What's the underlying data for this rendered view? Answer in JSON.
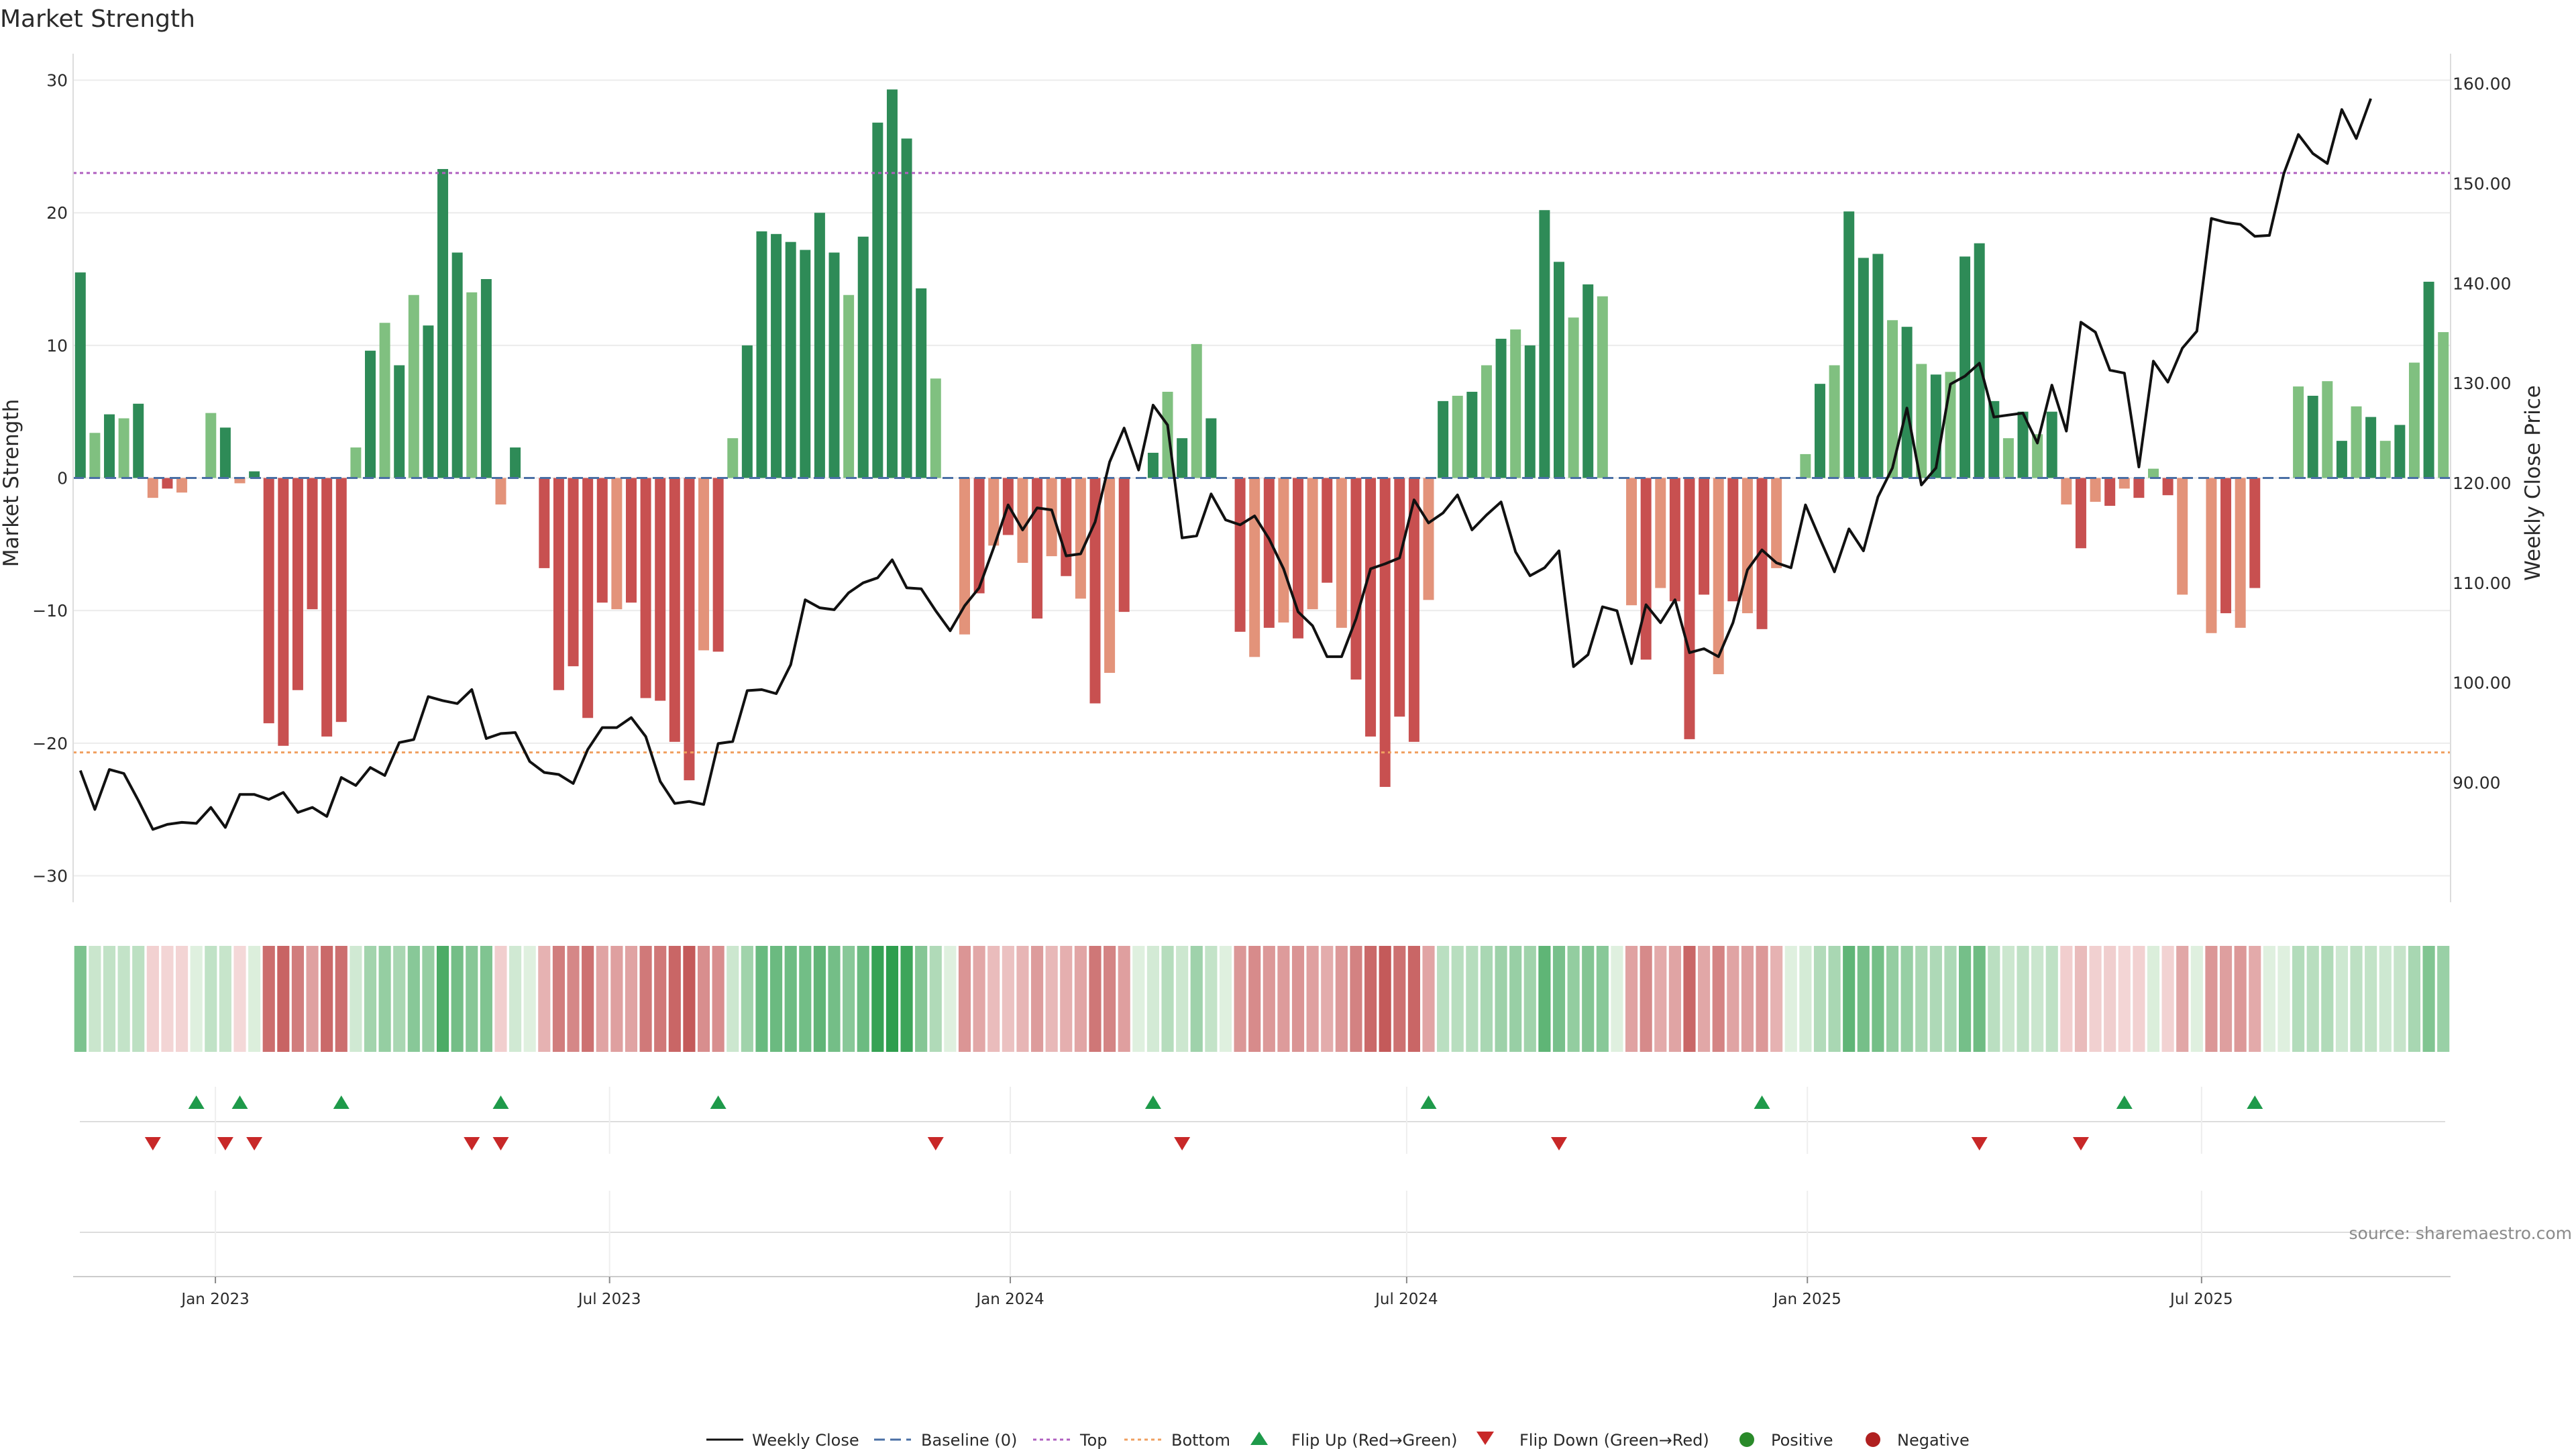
{
  "chart_data": {
    "type": "bar",
    "title": "Market Strength",
    "ylabel_left": "Market Strength",
    "ylabel_right": "Weekly Close Price",
    "ylim_left": [
      -32,
      32
    ],
    "yticks_left": [
      "30",
      "20",
      "10",
      "0",
      "−10",
      "−20",
      "−30"
    ],
    "yticks_left_values": [
      30,
      20,
      10,
      0,
      -10,
      -20,
      -30
    ],
    "ylim_right": [
      78,
      163
    ],
    "yticks_right": [
      "160.00",
      "150.00",
      "140.00",
      "130.00",
      "120.00",
      "110.00",
      "100.00",
      "90.00"
    ],
    "yticks_right_values": [
      160,
      150,
      140,
      130,
      120,
      110,
      100,
      90
    ],
    "x_start": "2022-10-31",
    "x_end": "2025-10-20",
    "x_ticks": [
      {
        "date": "2023-01-01",
        "label": "Jan 2023"
      },
      {
        "date": "2023-07-01",
        "label": "Jul 2023"
      },
      {
        "date": "2024-01-01",
        "label": "Jan 2024"
      },
      {
        "date": "2024-07-01",
        "label": "Jul 2024"
      },
      {
        "date": "2025-01-01",
        "label": "Jan 2025"
      },
      {
        "date": "2025-07-01",
        "label": "Jul 2025"
      }
    ],
    "grid": true,
    "legend_placement": "bottom",
    "top_line": 23,
    "bottom_line": -20.7,
    "strength": [
      15.5,
      3.4,
      4.8,
      4.5,
      5.6,
      -1.5,
      -0.8,
      -1.1,
      0,
      4.9,
      3.8,
      -0.4,
      0.5,
      -18.5,
      -20.2,
      -16,
      -9.9,
      -19.5,
      -18.4,
      2.3,
      9.6,
      11.7,
      8.5,
      13.8,
      11.5,
      23.3,
      17,
      14,
      15,
      -2,
      2.3,
      0,
      -6.8,
      -16,
      -14.2,
      -18.1,
      -9.4,
      -9.9,
      -9.4,
      -16.6,
      -16.8,
      -19.9,
      -22.8,
      -13,
      -13.1,
      3,
      10,
      18.6,
      18.4,
      17.8,
      17.2,
      20,
      17,
      13.8,
      18.2,
      26.8,
      29.3,
      25.6,
      14.3,
      7.5,
      0,
      -11.8,
      -8.7,
      -5.1,
      -4.3,
      -6.4,
      -10.6,
      -5.9,
      -7.4,
      -9.1,
      -17,
      -14.7,
      -10.1,
      0,
      1.9,
      6.5,
      3,
      10.1,
      4.5,
      0,
      -11.6,
      -13.5,
      -11.3,
      -10.9,
      -12.1,
      -9.9,
      -7.9,
      -11.3,
      -15.2,
      -19.5,
      -23.3,
      -18,
      -19.9,
      -9.2,
      5.8,
      6.2,
      6.5,
      8.5,
      10.5,
      11.2,
      10,
      20.2,
      16.3,
      12.1,
      14.6,
      13.7,
      0,
      -9.6,
      -13.7,
      -8.3,
      -9.3,
      -19.7,
      -8.8,
      -14.8,
      -9.3,
      -10.2,
      -11.4,
      -6.8,
      0,
      1.8,
      7.1,
      8.5,
      20.1,
      16.6,
      16.9,
      11.9,
      11.4,
      8.6,
      7.8,
      8,
      16.7,
      17.7,
      5.8,
      3,
      5,
      3.3,
      5,
      -2,
      -5.3,
      -1.8,
      -2.1,
      -0.8,
      -1.5,
      0.7,
      -1.3,
      -8.8,
      0,
      -11.7,
      -10.2,
      -11.3,
      -8.3,
      0,
      0,
      6.9,
      6.2,
      7.3,
      2.8,
      5.4,
      4.6,
      2.8,
      4,
      8.7,
      14.8,
      11
    ],
    "weekly_close": [
      91.2,
      87.3,
      91.3,
      90.9,
      88.2,
      85.3,
      85.8,
      86,
      85.9,
      87.5,
      85.5,
      88.8,
      88.8,
      88.3,
      89,
      87,
      87.5,
      86.6,
      90.5,
      89.7,
      91.5,
      90.7,
      94,
      94.3,
      98.6,
      98.2,
      97.9,
      99.3,
      94.4,
      94.9,
      95,
      92.1,
      91,
      90.8,
      89.9,
      93.3,
      95.5,
      95.5,
      96.5,
      94.6,
      90.1,
      87.9,
      88.1,
      87.8,
      93.9,
      94.1,
      99.2,
      99.3,
      98.9,
      101.8,
      108.3,
      107.5,
      107.3,
      109,
      110,
      110.5,
      112.3,
      109.5,
      109.4,
      107.2,
      105.2,
      107.7,
      109.5,
      113.5,
      117.8,
      115.3,
      117.5,
      117.3,
      112.7,
      112.9,
      116.1,
      122.1,
      125.5,
      121.3,
      127.8,
      125.8,
      114.5,
      114.7,
      118.9,
      116.3,
      115.8,
      116.7,
      114.4,
      111.4,
      107.1,
      105.7,
      102.6,
      102.6,
      106.4,
      111.4,
      111.9,
      112.5,
      118.3,
      116,
      117,
      118.8,
      115.3,
      116.8,
      118.1,
      113.1,
      110.7,
      111.5,
      113.2,
      101.6,
      102.8,
      107.6,
      107.2,
      101.9,
      107.8,
      106,
      108.3,
      103,
      103.4,
      102.6,
      106,
      111.3,
      113.3,
      112,
      111.5,
      117.8,
      114.4,
      111.1,
      115.4,
      113.2,
      118.6,
      121.5,
      127.5,
      119.8,
      121.5,
      129.9,
      130.7,
      132,
      126.6,
      126.8,
      127,
      124,
      129.8,
      125.2,
      136.1,
      135.1,
      131.3,
      131,
      121.6,
      132.2,
      130.1,
      133.5,
      135.2,
      146.5,
      146.1,
      145.9,
      144.7,
      144.8,
      151,
      154.9,
      153,
      152,
      157.4,
      154.5,
      158.5
    ],
    "flip_up_weeks": [
      8,
      11,
      18,
      29,
      44,
      74,
      93,
      116,
      141,
      150
    ],
    "flip_down_weeks": [
      5,
      10,
      12,
      27,
      29,
      59,
      76,
      102,
      131,
      138
    ]
  },
  "legend": {
    "weekly_close": "Weekly Close",
    "baseline": "Baseline (0)",
    "top": "Top",
    "bottom": "Bottom",
    "flip_up": "Flip Up (Red→Green)",
    "flip_down": "Flip Down (Green→Red)",
    "positive": "Positive",
    "negative": "Negative"
  },
  "colors": {
    "strong_green": "#2e8b57",
    "light_green": "#80c080",
    "strong_red": "#c85050",
    "light_red": "#e3937a",
    "close_line": "#111111",
    "baseline": "#4a6fa5",
    "top": "#b060c0",
    "bottom": "#f0a060",
    "flip_up": "#1e9a4a",
    "flip_down": "#c82828",
    "positive_dot": "#2a8a2a",
    "negative_dot": "#b02020"
  },
  "source": "source: sharemaestro.com"
}
